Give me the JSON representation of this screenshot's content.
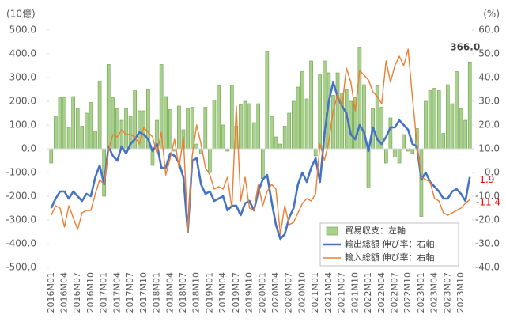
{
  "chart_data": {
    "type": "bar_line",
    "y_label": "(10億)",
    "y2_label": "(%)",
    "categories": [
      "2016M01",
      null,
      null,
      "2016M04",
      null,
      null,
      "2016M07",
      null,
      null,
      "2016M10",
      null,
      null,
      "2017M01",
      null,
      null,
      "2017M04",
      null,
      null,
      "2017M07",
      null,
      null,
      "2017M10",
      null,
      null,
      "2018M01",
      null,
      null,
      "2018M04",
      null,
      null,
      "2018M07",
      null,
      null,
      "2018M10",
      null,
      null,
      "2019M01",
      null,
      null,
      "2019M04",
      null,
      null,
      "2019M07",
      null,
      null,
      "2019M10",
      null,
      null,
      "2020M01",
      null,
      null,
      "2020M04",
      null,
      null,
      "2020M07",
      null,
      null,
      "2020M10",
      null,
      null,
      "2021M01",
      null,
      null,
      "2021M04",
      null,
      null,
      "2021M07",
      null,
      null,
      "2021M10",
      null,
      null,
      "2022M01",
      null,
      null,
      "2022M04",
      null,
      null,
      "2022M07",
      null,
      null,
      "2022M10",
      null,
      null,
      "2023M01",
      null,
      null,
      "2023M04",
      null,
      null,
      "2023M07",
      null,
      null,
      "2023M10",
      null,
      null
    ],
    "series": [
      {
        "name": "貿易収支：左軸",
        "kind": "bar",
        "color": "#a9d18e",
        "axis": "y",
        "values": [
          -60,
          135,
          215,
          215,
          90,
          220,
          170,
          95,
          150,
          195,
          75,
          285,
          -200,
          355,
          215,
          170,
          120,
          170,
          135,
          245,
          160,
          160,
          250,
          -70,
          120,
          355,
          220,
          165,
          -10,
          180,
          80,
          170,
          175,
          20,
          -20,
          175,
          -100,
          205,
          265,
          100,
          -10,
          265,
          95,
          185,
          200,
          190,
          110,
          190,
          -125,
          410,
          135,
          50,
          20,
          95,
          150,
          200,
          260,
          325,
          210,
          370,
          -30,
          315,
          370,
          320,
          225,
          320,
          235,
          250,
          200,
          215,
          425,
          270,
          -165,
          170,
          265,
          175,
          -60,
          130,
          -35,
          -60,
          60,
          -10,
          -20,
          85,
          -285,
          200,
          245,
          255,
          245,
          65,
          270,
          190,
          325,
          170,
          120,
          366
        ],
        "value_labels": [
          null,
          null,
          null,
          null,
          null,
          null,
          null,
          null,
          null,
          null,
          null,
          null,
          null,
          null,
          null,
          null,
          null,
          null,
          null,
          null,
          null,
          null,
          null,
          null,
          null,
          null,
          null,
          null,
          null,
          null,
          null,
          null,
          null,
          null,
          null,
          null,
          null,
          null,
          null,
          null,
          null,
          null,
          null,
          null,
          null,
          null,
          null,
          null,
          null,
          null,
          null,
          null,
          null,
          null,
          null,
          null,
          null,
          null,
          null,
          null,
          null,
          null,
          null,
          null,
          null,
          null,
          null,
          null,
          null,
          null,
          null,
          null,
          null,
          null,
          null,
          null,
          null,
          null,
          null,
          null,
          null,
          null,
          null,
          null,
          null,
          null,
          null,
          null,
          null,
          null,
          null,
          null,
          null,
          null,
          null,
          "366.0"
        ]
      },
      {
        "name": "輸出総額 伸び率：右軸",
        "kind": "line",
        "color": "#4472c4",
        "axis": "y2",
        "values": [
          -15,
          -11,
          -8,
          -8,
          -11,
          -8,
          -10,
          -12,
          -9,
          -10,
          -2,
          3,
          -5,
          11,
          7,
          5,
          11,
          8,
          12,
          14,
          17,
          16,
          14,
          9,
          12,
          2,
          2,
          8,
          7,
          4,
          -2,
          -25,
          5,
          6,
          -5,
          -9,
          -8,
          -12,
          -11,
          -10,
          -16,
          -14,
          -14,
          -18,
          -13,
          -12,
          -16,
          -8,
          -3,
          -1,
          -12,
          -22,
          -28,
          -26,
          -19,
          -15,
          -5,
          0,
          -4,
          2,
          6,
          -4,
          16,
          30,
          38,
          32,
          28,
          25,
          16,
          14,
          20,
          17,
          9,
          19,
          14,
          12,
          15,
          19,
          19,
          22,
          20,
          18,
          12,
          11,
          -3,
          0,
          -4,
          -6,
          -8,
          -11,
          -11,
          -8,
          -7,
          -9,
          -12,
          -1.9
        ],
        "value_labels": [
          null,
          null,
          null,
          null,
          null,
          null,
          null,
          null,
          null,
          null,
          null,
          null,
          null,
          null,
          null,
          null,
          null,
          null,
          null,
          null,
          null,
          null,
          null,
          null,
          null,
          null,
          null,
          null,
          null,
          null,
          null,
          null,
          null,
          null,
          null,
          null,
          null,
          null,
          null,
          null,
          null,
          null,
          null,
          null,
          null,
          null,
          null,
          null,
          null,
          null,
          null,
          null,
          null,
          null,
          null,
          null,
          null,
          null,
          null,
          null,
          null,
          null,
          null,
          null,
          null,
          null,
          null,
          null,
          null,
          null,
          null,
          null,
          null,
          null,
          null,
          null,
          null,
          null,
          null,
          null,
          null,
          null,
          null,
          null,
          null,
          null,
          null,
          null,
          null,
          null,
          null,
          null,
          null,
          null,
          null,
          "-1.9"
        ]
      },
      {
        "name": "輸入総額 伸び率：右軸",
        "kind": "line",
        "color": "#ed7d31",
        "axis": "y2",
        "values": [
          -18,
          -14,
          -15,
          -23,
          -14,
          -19,
          -24,
          -17,
          -16,
          -16,
          -9,
          -3,
          -5,
          9,
          16,
          15,
          18,
          16,
          16,
          15,
          12,
          19,
          17,
          15,
          8,
          17,
          -1,
          6,
          14,
          2,
          15,
          -25,
          7,
          20,
          12,
          2,
          -1,
          -7,
          -6,
          -7,
          -2,
          -15,
          28,
          -12,
          -2,
          -15,
          -16,
          -5,
          -14,
          -8,
          -5,
          -7,
          -26,
          -14,
          -22,
          -21,
          -17,
          -13,
          -11,
          -12,
          -9,
          12,
          5,
          13,
          26,
          33,
          28,
          44,
          38,
          26,
          43,
          41,
          39,
          34,
          32,
          29,
          47,
          38,
          45,
          49,
          45,
          52,
          31,
          12,
          -2,
          -3,
          -4,
          -11,
          -12,
          -17,
          -18,
          -17,
          -16,
          -15,
          -13,
          -11.4
        ],
        "value_labels": [
          null,
          null,
          null,
          null,
          null,
          null,
          null,
          null,
          null,
          null,
          null,
          null,
          null,
          null,
          null,
          null,
          null,
          null,
          null,
          null,
          null,
          null,
          null,
          null,
          null,
          null,
          null,
          null,
          null,
          null,
          null,
          null,
          null,
          null,
          null,
          null,
          null,
          null,
          null,
          null,
          null,
          null,
          null,
          null,
          null,
          null,
          null,
          null,
          null,
          null,
          null,
          null,
          null,
          null,
          null,
          null,
          null,
          null,
          null,
          null,
          null,
          null,
          null,
          null,
          null,
          null,
          null,
          null,
          null,
          null,
          null,
          null,
          null,
          null,
          null,
          null,
          null,
          null,
          null,
          null,
          null,
          null,
          null,
          null,
          null,
          null,
          null,
          null,
          null,
          null,
          null,
          null,
          null,
          null,
          null,
          "-11.4"
        ]
      }
    ],
    "ylim": [
      -500,
      500
    ],
    "yticks": [
      {
        "value": 500,
        "label": "500.0"
      },
      {
        "value": 400,
        "label": "400.0"
      },
      {
        "value": 300,
        "label": "300.0"
      },
      {
        "value": 200,
        "label": "200.0"
      },
      {
        "value": 100,
        "label": "100.0"
      },
      {
        "value": 0,
        "label": "0.0"
      },
      {
        "value": -100,
        "label": "-100.0"
      },
      {
        "value": -200,
        "label": "-200.0"
      },
      {
        "value": -300,
        "label": "-300.0"
      },
      {
        "value": -400,
        "label": "-400.0"
      },
      {
        "value": -500,
        "label": "-500.0"
      }
    ],
    "y2lim": [
      -40,
      60
    ],
    "y2ticks": [
      {
        "value": 60,
        "label": "60.0"
      },
      {
        "value": 50,
        "label": "50.0"
      },
      {
        "value": 40,
        "label": "40.0"
      },
      {
        "value": 30,
        "label": "30.0"
      },
      {
        "value": 20,
        "label": "20.0"
      },
      {
        "value": 10,
        "label": "10.0"
      },
      {
        "value": 0,
        "label": "0.0"
      },
      {
        "value": -10,
        "label": "-10.0"
      },
      {
        "value": -20,
        "label": "-20.0"
      },
      {
        "value": -30,
        "label": "-30.0"
      },
      {
        "value": -40,
        "label": "-40.0"
      }
    ],
    "grid": false,
    "legend": "lower right"
  }
}
